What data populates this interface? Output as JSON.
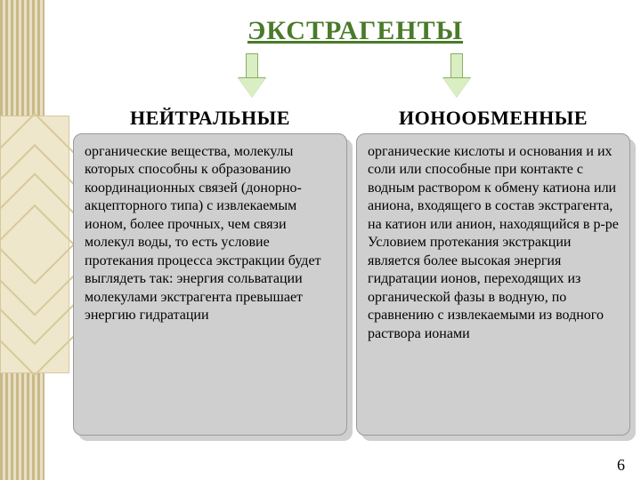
{
  "title": "ЭКСТРАГЕНТЫ",
  "left": {
    "heading": "НЕЙТРАЛЬНЫЕ",
    "text": "органические вещества, молекулы которых способны к образованию координационных связей (донорно-акцепторного типа) с извлекаемым ионом, более прочных, чем связи молекул воды, то есть условие протекания процесса экстракции будет выглядеть так: энергия сольватации молекулами экстрагента превышает энергию гидратации"
  },
  "right": {
    "heading": "ИОНООБМЕННЫЕ",
    "text": "органические кислоты и основания и их соли или способные при контакте с водным раствором к обмену катиона или аниона, входящего в состав экстрагента, на катион или анион, находящийся в р-ре Условием протекания экстракции является более высокая энергия гидратации ионов, переходящих из органической фазы в водную, по сравнению с извлекаемыми из водного раствора ионами"
  },
  "page": "6",
  "colors": {
    "title": "#4a7a2a",
    "arrow_fill": "#d9eec3",
    "arrow_border": "#8aae63",
    "box_bg": "#cfcfcf",
    "box_border": "#9a9a9a",
    "deco_light": "#efe7cc",
    "deco_dark": "#d6c99a"
  }
}
